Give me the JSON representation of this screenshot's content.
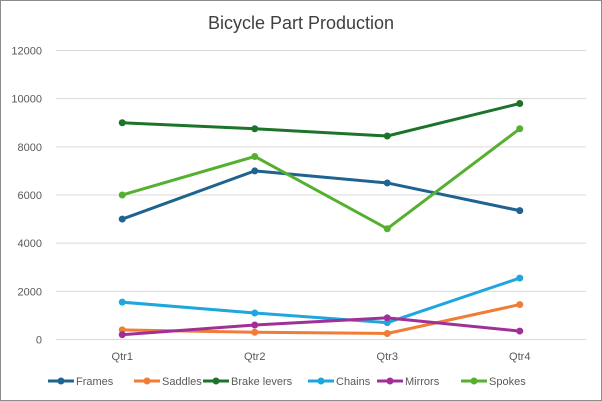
{
  "chart_data": {
    "type": "line",
    "title": "Bicycle Part Production",
    "categories": [
      "Qtr1",
      "Qtr2",
      "Qtr3",
      "Qtr4"
    ],
    "ylim": [
      0,
      12000
    ],
    "yticks": [
      0,
      2000,
      4000,
      6000,
      8000,
      10000,
      12000
    ],
    "grid": true,
    "legend": "bottom",
    "series": [
      {
        "name": "Frames",
        "color": "#1f6391",
        "values": [
          5000,
          7000,
          6500,
          5350
        ]
      },
      {
        "name": "Saddles",
        "color": "#f07c35",
        "values": [
          400,
          300,
          250,
          1450
        ]
      },
      {
        "name": "Brake levers",
        "color": "#1d7329",
        "values": [
          9000,
          8750,
          8450,
          9800
        ]
      },
      {
        "name": "Chains",
        "color": "#1ea6dd",
        "values": [
          1550,
          1100,
          700,
          2550
        ]
      },
      {
        "name": "Mirrors",
        "color": "#a03097",
        "values": [
          200,
          600,
          900,
          350
        ]
      },
      {
        "name": "Spokes",
        "color": "#55b030",
        "values": [
          6000,
          7600,
          4600,
          8750
        ]
      }
    ]
  }
}
